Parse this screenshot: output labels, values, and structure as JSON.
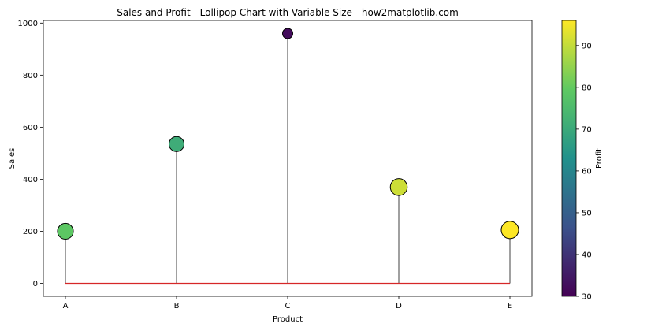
{
  "chart_data": {
    "type": "lollipop",
    "title": "Sales and Profit - Lollipop Chart with Variable Size - how2matplotlib.com",
    "xlabel": "Product",
    "ylabel": "Sales",
    "categories": [
      "A",
      "B",
      "C",
      "D",
      "E"
    ],
    "values": [
      200,
      535,
      960,
      370,
      205
    ],
    "profit": [
      79,
      71,
      32,
      91,
      96
    ],
    "ylim": [
      -50,
      1010
    ],
    "yticks": [
      0,
      200,
      400,
      600,
      800,
      1000
    ],
    "baseline": 0,
    "baseline_color": "#d62728",
    "stem_color": "#808080",
    "grid": false,
    "legend": "none",
    "colorbar": {
      "label": "Profit",
      "min": 30,
      "max": 96,
      "ticks": [
        30,
        40,
        50,
        60,
        70,
        80,
        90
      ],
      "colormap": "viridis"
    }
  }
}
